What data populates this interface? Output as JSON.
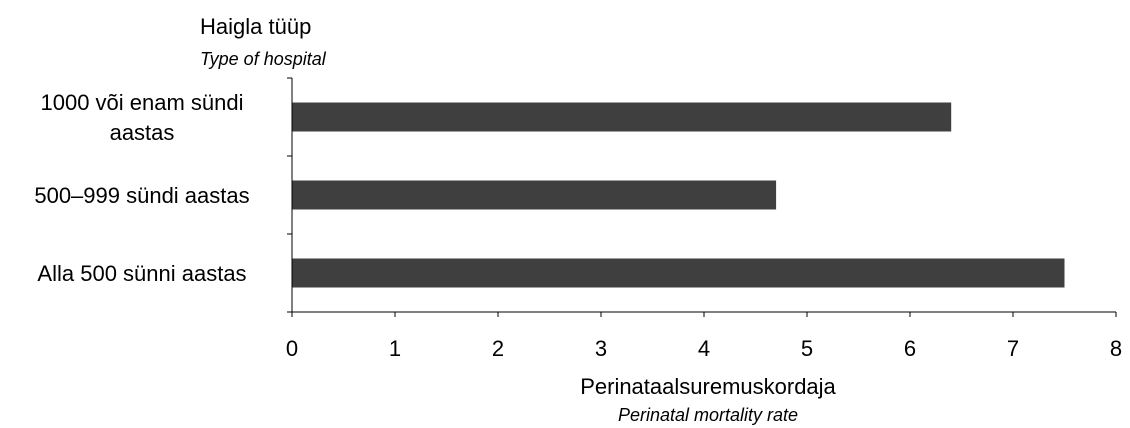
{
  "chart_data": {
    "type": "bar",
    "orientation": "horizontal",
    "y_title": "Haigla tüüp",
    "y_title_en": "Type of hospital",
    "x_title": "Perinataalsuremuskordaja",
    "x_title_en": "Perinatal mortality rate",
    "categories": [
      [
        "1000 või enam sündi",
        "aastas"
      ],
      [
        "500–999 sündi aastas"
      ],
      [
        "Alla 500 sünni aastas"
      ]
    ],
    "values": [
      6.4,
      4.7,
      7.5
    ],
    "xlim": [
      0,
      8
    ],
    "x_ticks": [
      0,
      1,
      2,
      3,
      4,
      5,
      6,
      7,
      8
    ],
    "grid": false,
    "legend": "none",
    "bar_color": "#3f3f3f"
  }
}
